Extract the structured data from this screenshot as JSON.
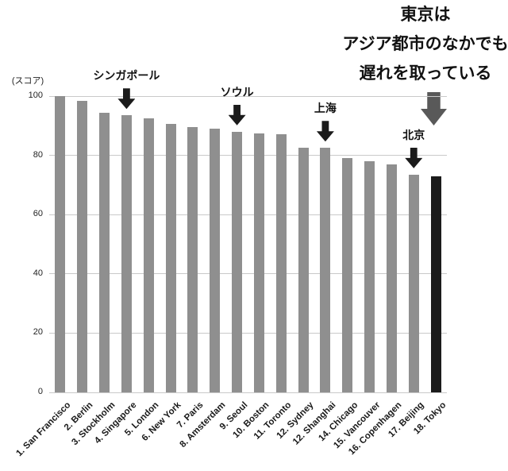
{
  "headline": {
    "lines": [
      "東京は",
      "アジア都市のなかでも",
      "遅れを取っている"
    ]
  },
  "chart_data": {
    "type": "bar",
    "title": "",
    "ylabel": "(スコア)",
    "xlabel": "",
    "ylim": [
      0,
      100
    ],
    "yticks": [
      0,
      20,
      40,
      60,
      80,
      100
    ],
    "grid": true,
    "legend": "none",
    "categories": [
      "1. San Francisco",
      "2. Berlin",
      "3. Stockholm",
      "4. Singapore",
      "5. London",
      "6. New York",
      "7. Paris",
      "8. Amsterdam",
      "9. Seoul",
      "10. Boston",
      "11. Toronto",
      "12. Sydney",
      "12. Shanghai",
      "14. Chicago",
      "15. Vancouver",
      "16. Copenhagen",
      "17. Beijing",
      "18. Tokyo"
    ],
    "values": [
      100,
      98.5,
      94.5,
      93.5,
      92.5,
      90.5,
      89.5,
      89,
      88,
      87.5,
      87,
      82.5,
      82.5,
      79,
      78,
      77,
      73.5,
      73
    ],
    "bar_color": "#8f8f8f",
    "highlight": {
      "index": 17,
      "category": "18. Tokyo",
      "color": "#1b1b1b"
    },
    "annotations": [
      {
        "label": "シンガポール",
        "target_index": 3
      },
      {
        "label": "ソウル",
        "target_index": 8
      },
      {
        "label": "上海",
        "target_index": 12
      },
      {
        "label": "北京",
        "target_index": 16
      }
    ],
    "big_arrow": {
      "color": "#595959",
      "points_to_index": 17
    },
    "gridline_color": "#c9c9c9"
  }
}
